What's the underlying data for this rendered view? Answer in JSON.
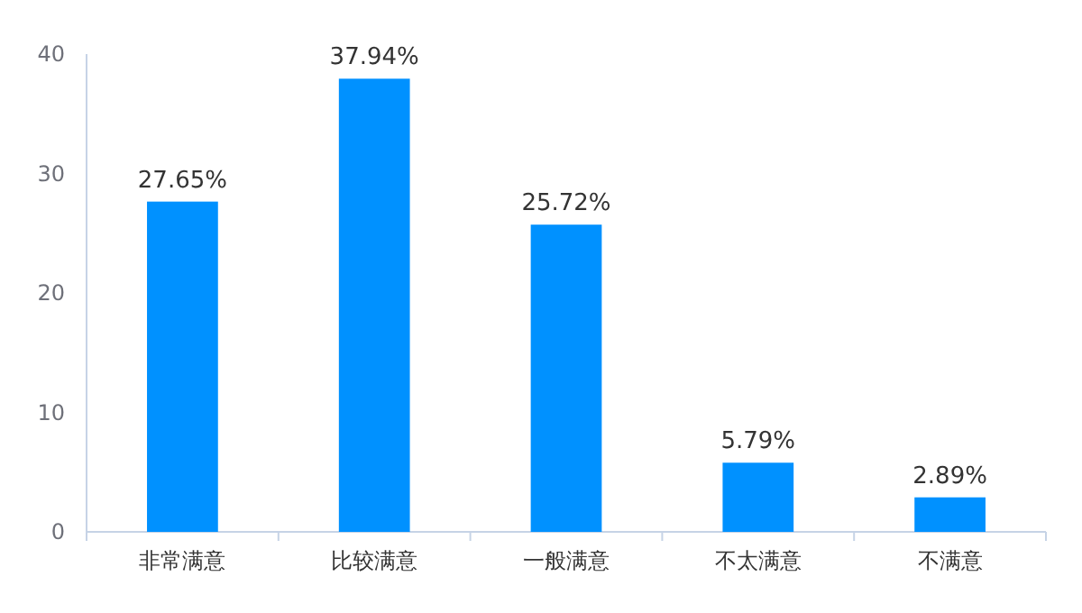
{
  "chart_data": {
    "type": "bar",
    "categories": [
      "非常满意",
      "比较满意",
      "一般满意",
      "不太满意",
      "不满意"
    ],
    "values": [
      27.65,
      37.94,
      25.72,
      5.79,
      2.89
    ],
    "value_labels": [
      "27.65%",
      "37.94%",
      "25.72%",
      "5.79%",
      "2.89%"
    ],
    "color": "#0091ff",
    "ylim": [
      0,
      40
    ],
    "yticks": [
      0,
      10,
      20,
      30,
      40
    ],
    "grid": false
  }
}
